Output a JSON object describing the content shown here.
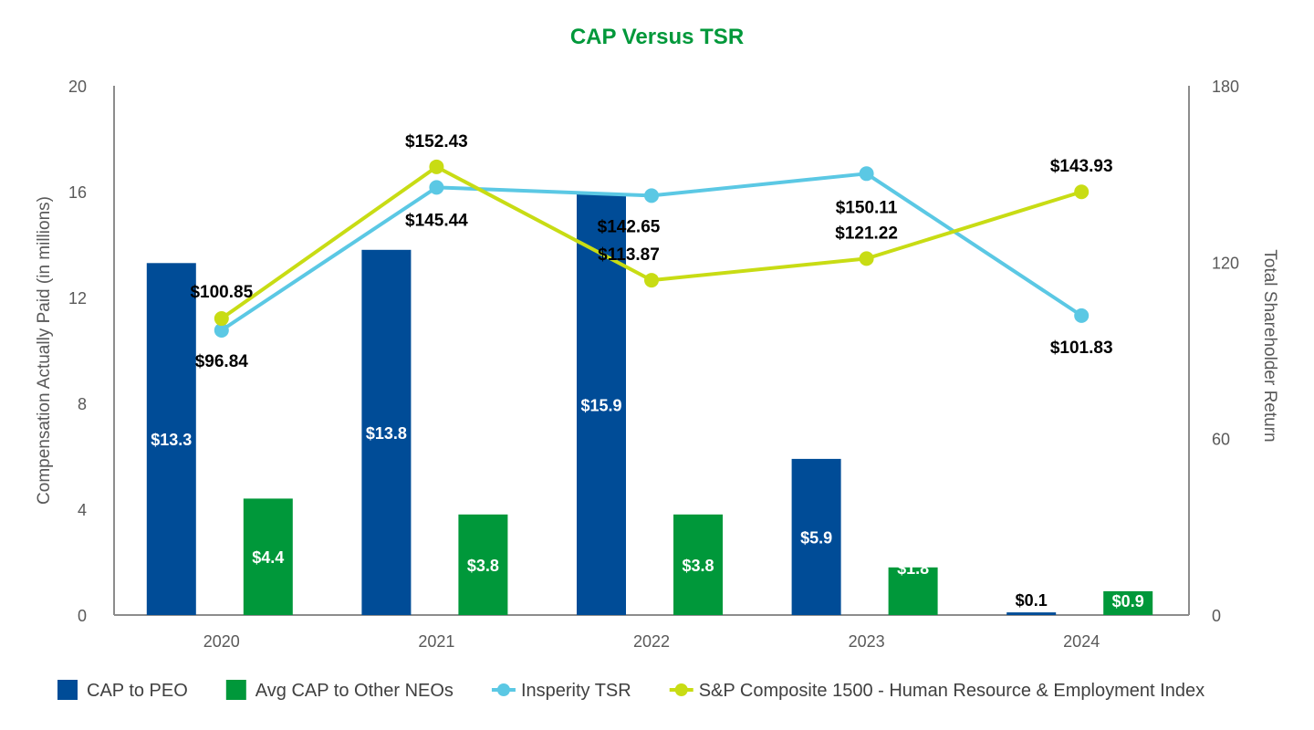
{
  "chart_data": {
    "type": "bar",
    "title": "CAP Versus TSR",
    "categories": [
      "2020",
      "2021",
      "2022",
      "2023",
      "2024"
    ],
    "ylabel": "Compensation Actually Paid (in millions)",
    "ylim": [
      0,
      20
    ],
    "yticks": [
      "0",
      "4",
      "8",
      "12",
      "16",
      "20"
    ],
    "y2label": "Total Shareholder Return",
    "y2lim": [
      0,
      180
    ],
    "y2ticks": [
      "0",
      "60",
      "120",
      "180"
    ],
    "grid": false,
    "legend_position": "bottom",
    "bar_series": [
      {
        "name": "CAP to PEO",
        "values": [
          13.3,
          13.8,
          15.9,
          5.9,
          0.1
        ],
        "labels": [
          "$13.3",
          "$13.8",
          "$15.9",
          "$5.9",
          "$0.1"
        ],
        "color": "#004C97"
      },
      {
        "name": "Avg CAP to Other NEOs",
        "values": [
          4.4,
          3.8,
          3.8,
          1.8,
          0.9
        ],
        "labels": [
          "$4.4",
          "$3.8",
          "$3.8",
          "$1.8",
          "$0.9"
        ],
        "color": "#00983A"
      }
    ],
    "line_series": [
      {
        "name": "Insperity TSR",
        "axis": "right",
        "values": [
          96.84,
          145.44,
          142.65,
          150.11,
          101.83
        ],
        "labels": [
          "$96.84",
          "$145.44",
          "$142.65",
          "$150.11",
          "$101.83"
        ],
        "color": "#5BC8E4"
      },
      {
        "name": "S&P Composite 1500 - Human Resource & Employment Index",
        "axis": "right",
        "values": [
          100.85,
          152.43,
          113.87,
          121.22,
          143.93
        ],
        "labels": [
          "$100.85",
          "$152.43",
          "$113.87",
          "$121.22",
          "$143.93"
        ],
        "color": "#C8DC14"
      }
    ],
    "title_color": "#00983A",
    "axis_color": "#8C8C8C"
  }
}
